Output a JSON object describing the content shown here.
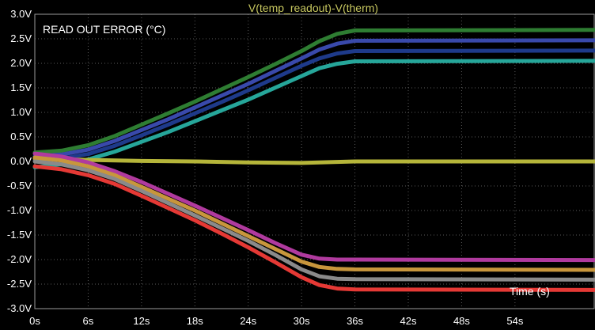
{
  "chart_data": {
    "type": "line",
    "title": "V(temp_readout)-V(therm)",
    "annotation": "READ OUT ERROR (°C)",
    "xlabel": "Time (s)",
    "ylabel": "",
    "xlim": [
      0,
      63
    ],
    "ylim": [
      -3.0,
      3.0
    ],
    "grid": true,
    "x_ticks": [
      "0s",
      "6s",
      "12s",
      "18s",
      "24s",
      "30s",
      "36s",
      "42s",
      "48s",
      "54s"
    ],
    "x_tick_values": [
      0,
      6,
      12,
      18,
      24,
      30,
      36,
      42,
      48,
      54
    ],
    "y_ticks": [
      "3.0V",
      "2.5V",
      "2.0V",
      "1.5V",
      "1.0V",
      "0.5V",
      "0.0V",
      "-0.5V",
      "-1.0V",
      "-1.5V",
      "-2.0V",
      "-2.5V",
      "-3.0V"
    ],
    "y_tick_values": [
      3.0,
      2.5,
      2.0,
      1.5,
      1.0,
      0.5,
      0.0,
      -0.5,
      -1.0,
      -1.5,
      -2.0,
      -2.5,
      -3.0
    ],
    "series": [
      {
        "color": "#2e7d32",
        "x": [
          0,
          3,
          6,
          9,
          12,
          15,
          18,
          21,
          24,
          27,
          30,
          32,
          34,
          36,
          63
        ],
        "y": [
          0.18,
          0.22,
          0.33,
          0.52,
          0.75,
          0.98,
          1.22,
          1.47,
          1.72,
          1.98,
          2.25,
          2.45,
          2.6,
          2.67,
          2.68
        ]
      },
      {
        "color": "#3949ab",
        "x": [
          0,
          3,
          6,
          9,
          12,
          15,
          18,
          21,
          24,
          27,
          30,
          32,
          34,
          36,
          63
        ],
        "y": [
          0.1,
          0.14,
          0.24,
          0.42,
          0.64,
          0.86,
          1.1,
          1.34,
          1.58,
          1.84,
          2.1,
          2.28,
          2.4,
          2.46,
          2.47
        ]
      },
      {
        "color": "#1e3a8a",
        "x": [
          0,
          3,
          6,
          9,
          12,
          15,
          18,
          21,
          24,
          27,
          30,
          32,
          34,
          36,
          63
        ],
        "y": [
          0.02,
          0.06,
          0.15,
          0.32,
          0.53,
          0.75,
          0.98,
          1.21,
          1.45,
          1.7,
          1.95,
          2.1,
          2.2,
          2.25,
          2.26
        ]
      },
      {
        "color": "#26a69a",
        "x": [
          0,
          3,
          6,
          9,
          12,
          15,
          18,
          21,
          24,
          27,
          30,
          32,
          34,
          36,
          63
        ],
        "y": [
          -0.12,
          -0.06,
          0.04,
          0.2,
          0.4,
          0.6,
          0.82,
          1.04,
          1.26,
          1.5,
          1.74,
          1.9,
          1.99,
          2.04,
          2.05
        ]
      },
      {
        "color": "#b5b53a",
        "x": [
          0,
          6,
          12,
          18,
          24,
          30,
          36,
          63
        ],
        "y": [
          0.06,
          0.03,
          0.01,
          0.0,
          -0.02,
          -0.03,
          0.0,
          0.0
        ]
      },
      {
        "color": "#b03a9e",
        "x": [
          0,
          3,
          6,
          9,
          12,
          15,
          18,
          21,
          24,
          27,
          30,
          32,
          34,
          36,
          63
        ],
        "y": [
          0.16,
          0.1,
          -0.02,
          -0.2,
          -0.42,
          -0.66,
          -0.9,
          -1.15,
          -1.4,
          -1.66,
          -1.9,
          -1.98,
          -2.0,
          -2.0,
          -2.01
        ]
      },
      {
        "color": "#c8963c",
        "x": [
          0,
          3,
          6,
          9,
          12,
          15,
          18,
          21,
          24,
          27,
          30,
          32,
          34,
          36,
          63
        ],
        "y": [
          0.08,
          0.02,
          -0.1,
          -0.28,
          -0.52,
          -0.76,
          -1.0,
          -1.26,
          -1.52,
          -1.78,
          -2.04,
          -2.15,
          -2.19,
          -2.2,
          -2.21
        ]
      },
      {
        "color": "#8a8a8a",
        "x": [
          0,
          3,
          6,
          9,
          12,
          15,
          18,
          21,
          24,
          27,
          30,
          32,
          34,
          36,
          63
        ],
        "y": [
          0.0,
          -0.06,
          -0.18,
          -0.36,
          -0.6,
          -0.85,
          -1.1,
          -1.36,
          -1.62,
          -1.9,
          -2.2,
          -2.34,
          -2.39,
          -2.4,
          -2.41
        ]
      },
      {
        "color": "#e53935",
        "x": [
          0,
          3,
          6,
          9,
          12,
          15,
          18,
          21,
          24,
          27,
          30,
          32,
          34,
          36,
          63
        ],
        "y": [
          -0.1,
          -0.16,
          -0.28,
          -0.46,
          -0.7,
          -0.95,
          -1.2,
          -1.47,
          -1.75,
          -2.05,
          -2.36,
          -2.52,
          -2.59,
          -2.61,
          -2.62
        ]
      }
    ]
  }
}
